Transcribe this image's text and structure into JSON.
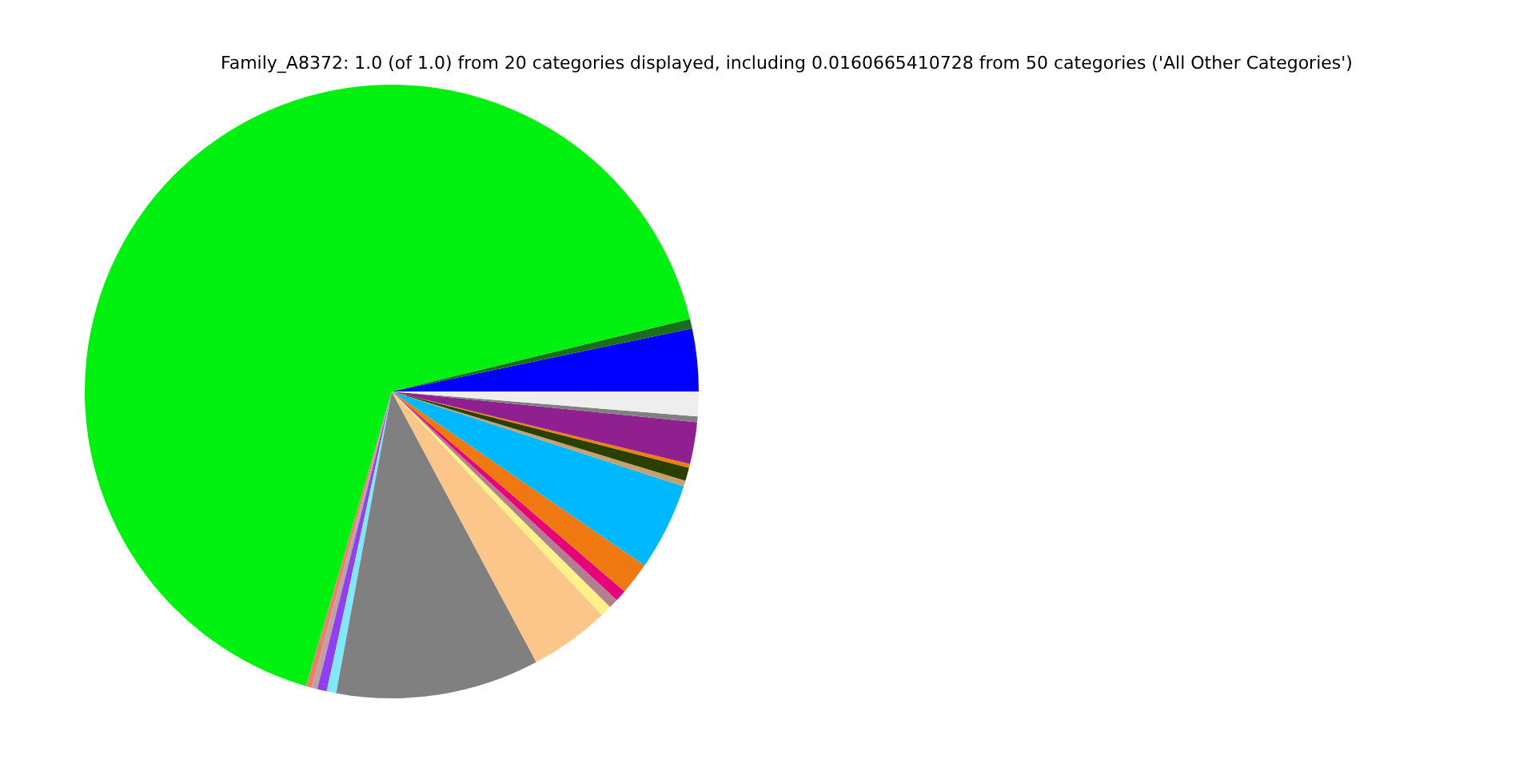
{
  "chart_data": {
    "type": "pie",
    "title": "Family_A8372: 1.0 (of 1.0) from 20 categories displayed, including 0.0160665410728 from 50 categories ('All Other Categories')",
    "categories": [
      null,
      null,
      null,
      null,
      null,
      null,
      null,
      null,
      null,
      null,
      null,
      null,
      null,
      null,
      null,
      null,
      null,
      null,
      null,
      null
    ],
    "values": [
      3.3,
      0.5,
      66.7,
      0.3,
      0.3,
      0.5,
      0.5,
      10.7,
      4.2,
      0.6,
      0.5,
      0.6,
      1.7,
      4.6,
      0.3,
      0.7,
      0.2,
      2.2,
      0.3,
      1.3
    ],
    "colors": [
      "#0000ff",
      "#1a6e1a",
      "#00f00f",
      "#e88070",
      "#c0a0a0",
      "#9040f0",
      "#80e8f8",
      "#808080",
      "#fcc68a",
      "#fff08a",
      "#b08090",
      "#e8007a",
      "#f07810",
      "#00b8ff",
      "#c8a070",
      "#2a4000",
      "#f08000",
      "#902090",
      "#808080",
      "#eeeeee"
    ],
    "legend": false
  }
}
